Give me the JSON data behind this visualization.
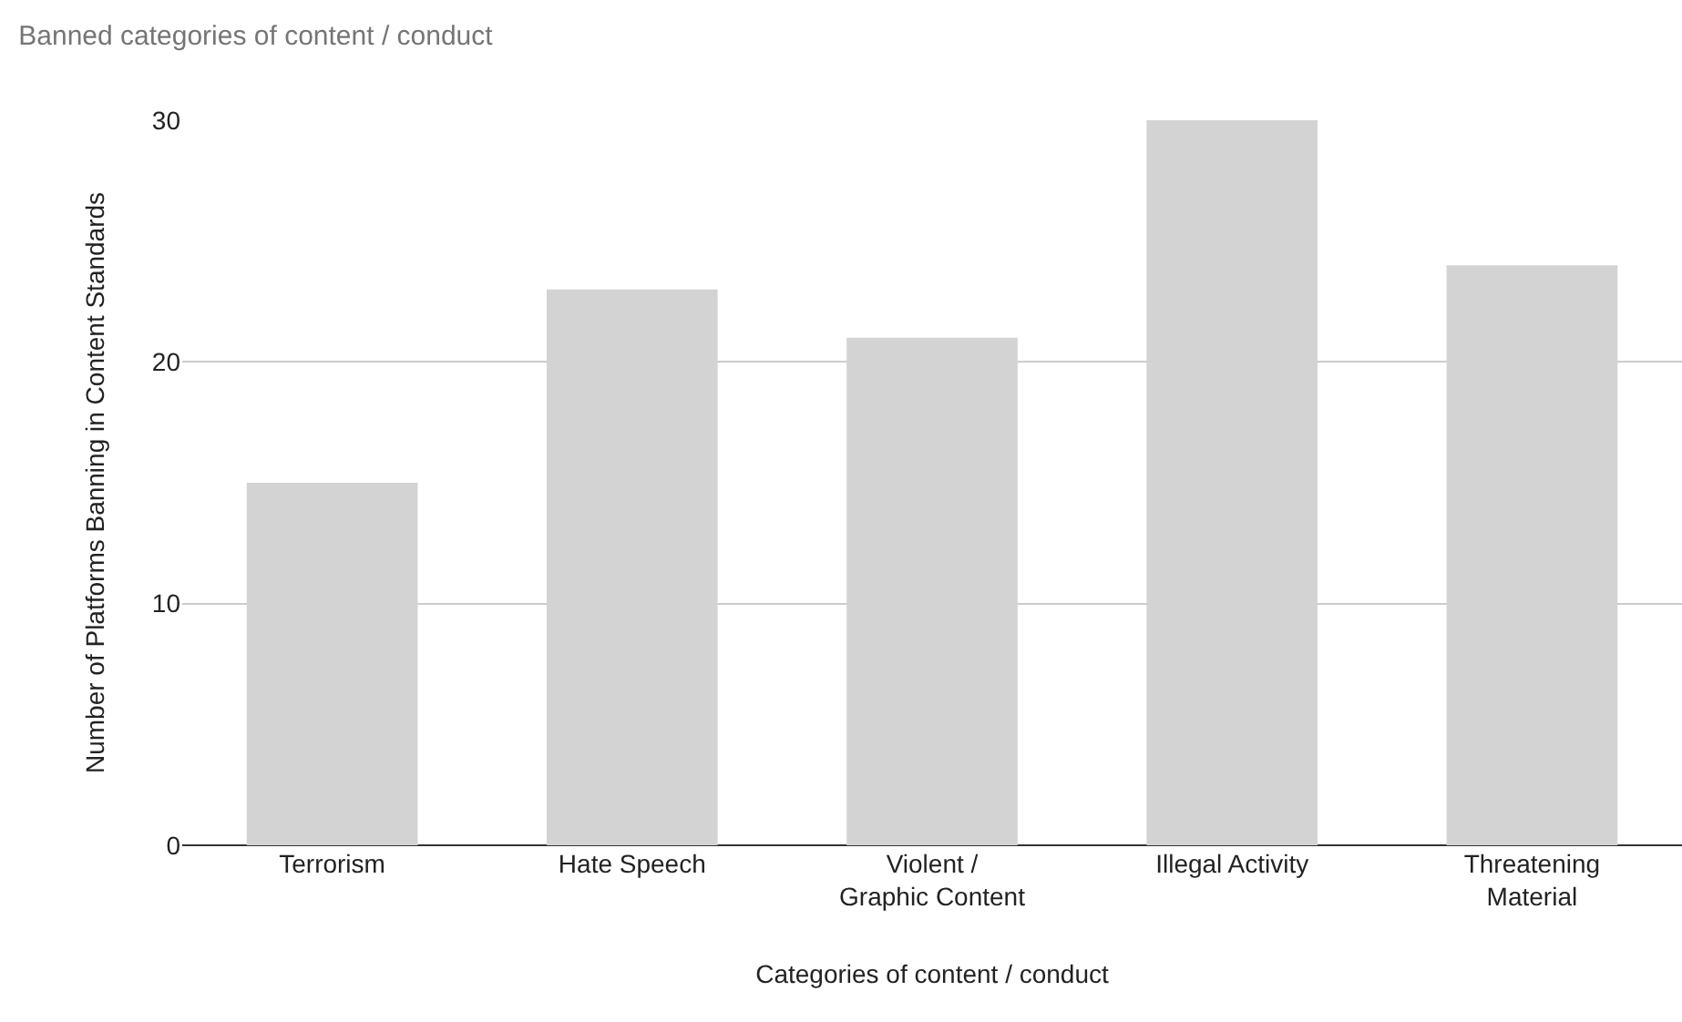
{
  "chart_data": {
    "type": "bar",
    "title": "Banned categories of content / conduct",
    "xlabel": "Categories of content / conduct",
    "ylabel": "Number of Platforms Banning in Content Standards",
    "categories": [
      "Terrorism",
      "Hate Speech",
      "Violent / Graphic Content",
      "Illegal Activity",
      "Threatening Material"
    ],
    "values": [
      15,
      23,
      21,
      30,
      24
    ],
    "color": "#d3d3d3",
    "ylim": [
      0,
      30
    ],
    "yticks": [
      0,
      10,
      20,
      30
    ],
    "grid": "y",
    "legend": false
  }
}
